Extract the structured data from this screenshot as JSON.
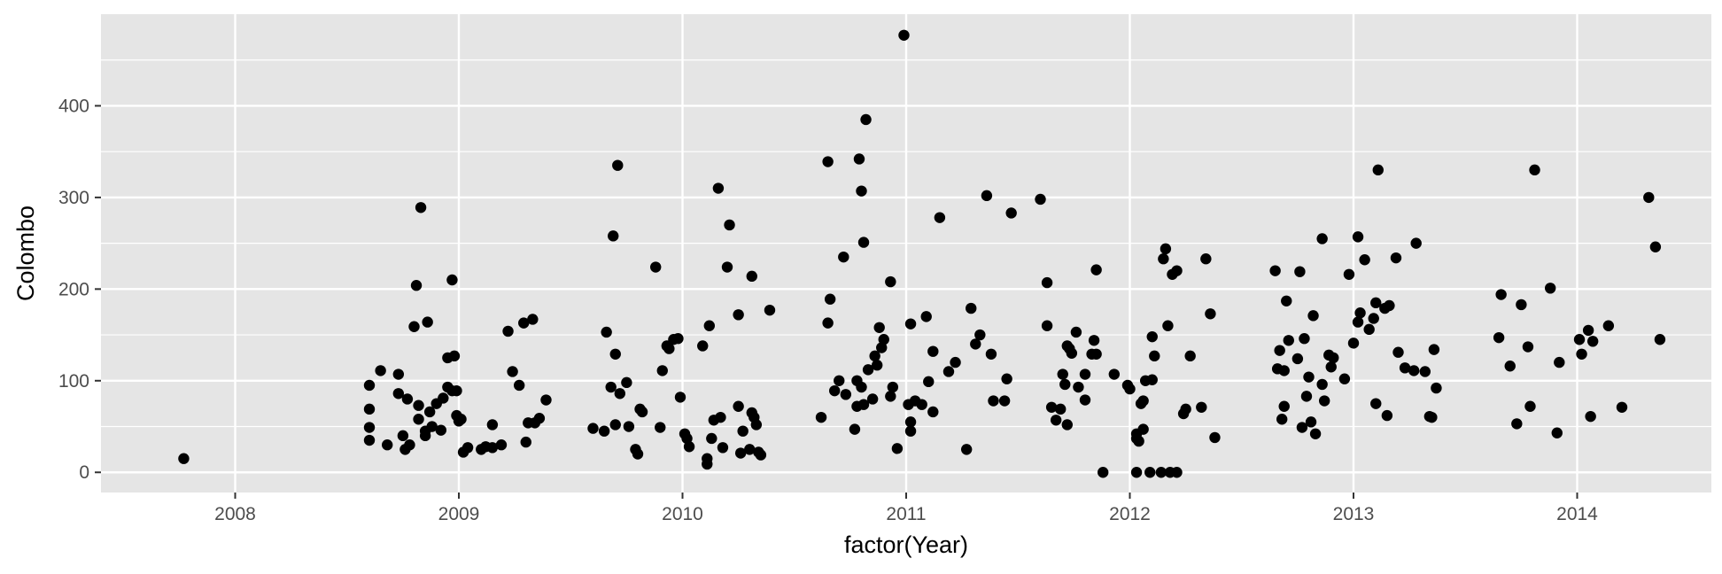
{
  "chart_data": {
    "type": "scatter",
    "xlabel": "factor(Year)",
    "ylabel": "Colombo",
    "xlim": [
      2007.4,
      2014.6
    ],
    "ylim": [
      -22,
      500
    ],
    "x_ticks": [
      2008,
      2009,
      2010,
      2011,
      2012,
      2013,
      2014
    ],
    "x_tick_labels": [
      "2008",
      "2009",
      "2010",
      "2011",
      "2012",
      "2013",
      "2014"
    ],
    "y_ticks": [
      0,
      100,
      200,
      300,
      400
    ],
    "y_tick_labels": [
      "0",
      "100",
      "200",
      "300",
      "400"
    ],
    "grid": true,
    "colors": {
      "panel": "#e5e5e5",
      "grid": "#ffffff",
      "point": "#000000",
      "tick": "#333333"
    },
    "points": [
      [
        2007.77,
        15
      ],
      [
        2008.6,
        95
      ],
      [
        2008.6,
        69
      ],
      [
        2008.6,
        49
      ],
      [
        2008.6,
        35
      ],
      [
        2008.65,
        111
      ],
      [
        2008.68,
        30
      ],
      [
        2008.73,
        86
      ],
      [
        2008.73,
        107
      ],
      [
        2008.75,
        40
      ],
      [
        2008.76,
        25
      ],
      [
        2008.77,
        80
      ],
      [
        2008.78,
        30
      ],
      [
        2008.8,
        159
      ],
      [
        2008.81,
        204
      ],
      [
        2008.82,
        58
      ],
      [
        2008.82,
        73
      ],
      [
        2008.83,
        289
      ],
      [
        2008.85,
        45
      ],
      [
        2008.85,
        40
      ],
      [
        2008.86,
        164
      ],
      [
        2008.87,
        66
      ],
      [
        2008.88,
        50
      ],
      [
        2008.9,
        75
      ],
      [
        2008.92,
        46
      ],
      [
        2008.93,
        81
      ],
      [
        2008.95,
        125
      ],
      [
        2008.95,
        93
      ],
      [
        2008.97,
        210
      ],
      [
        2008.97,
        89
      ],
      [
        2008.98,
        127
      ],
      [
        2008.99,
        89
      ],
      [
        2008.99,
        62
      ],
      [
        2009.0,
        56
      ],
      [
        2009.01,
        58
      ],
      [
        2009.02,
        22
      ],
      [
        2009.04,
        27
      ],
      [
        2009.1,
        25
      ],
      [
        2009.12,
        28
      ],
      [
        2009.15,
        27
      ],
      [
        2009.15,
        52
      ],
      [
        2009.19,
        30
      ],
      [
        2009.22,
        154
      ],
      [
        2009.24,
        110
      ],
      [
        2009.27,
        95
      ],
      [
        2009.29,
        163
      ],
      [
        2009.3,
        33
      ],
      [
        2009.31,
        54
      ],
      [
        2009.33,
        167
      ],
      [
        2009.34,
        54
      ],
      [
        2009.36,
        59
      ],
      [
        2009.39,
        79
      ],
      [
        2009.6,
        48
      ],
      [
        2009.65,
        45
      ],
      [
        2009.66,
        153
      ],
      [
        2009.68,
        93
      ],
      [
        2009.69,
        258
      ],
      [
        2009.7,
        52
      ],
      [
        2009.7,
        129
      ],
      [
        2009.71,
        335
      ],
      [
        2009.72,
        86
      ],
      [
        2009.75,
        98
      ],
      [
        2009.76,
        50
      ],
      [
        2009.79,
        25
      ],
      [
        2009.8,
        20
      ],
      [
        2009.81,
        69
      ],
      [
        2009.82,
        66
      ],
      [
        2009.88,
        224
      ],
      [
        2009.9,
        49
      ],
      [
        2009.91,
        111
      ],
      [
        2009.93,
        138
      ],
      [
        2009.94,
        135
      ],
      [
        2009.96,
        145
      ],
      [
        2009.98,
        146
      ],
      [
        2009.99,
        82
      ],
      [
        2010.01,
        42
      ],
      [
        2010.02,
        37
      ],
      [
        2010.03,
        28
      ],
      [
        2010.09,
        138
      ],
      [
        2010.11,
        9
      ],
      [
        2010.11,
        15
      ],
      [
        2010.12,
        160
      ],
      [
        2010.13,
        37
      ],
      [
        2010.14,
        57
      ],
      [
        2010.16,
        310
      ],
      [
        2010.17,
        60
      ],
      [
        2010.18,
        27
      ],
      [
        2010.2,
        224
      ],
      [
        2010.21,
        270
      ],
      [
        2010.25,
        172
      ],
      [
        2010.25,
        72
      ],
      [
        2010.26,
        21
      ],
      [
        2010.27,
        45
      ],
      [
        2010.3,
        25
      ],
      [
        2010.31,
        65
      ],
      [
        2010.31,
        214
      ],
      [
        2010.32,
        60
      ],
      [
        2010.33,
        52
      ],
      [
        2010.34,
        22
      ],
      [
        2010.35,
        19
      ],
      [
        2010.39,
        177
      ],
      [
        2010.62,
        60
      ],
      [
        2010.65,
        339
      ],
      [
        2010.65,
        163
      ],
      [
        2010.66,
        189
      ],
      [
        2010.68,
        89
      ],
      [
        2010.7,
        100
      ],
      [
        2010.72,
        235
      ],
      [
        2010.73,
        85
      ],
      [
        2010.77,
        47
      ],
      [
        2010.78,
        100
      ],
      [
        2010.78,
        72
      ],
      [
        2010.79,
        342
      ],
      [
        2010.8,
        93
      ],
      [
        2010.8,
        307
      ],
      [
        2010.81,
        251
      ],
      [
        2010.81,
        74
      ],
      [
        2010.82,
        385
      ],
      [
        2010.83,
        112
      ],
      [
        2010.85,
        80
      ],
      [
        2010.86,
        127
      ],
      [
        2010.87,
        117
      ],
      [
        2010.88,
        158
      ],
      [
        2010.89,
        136
      ],
      [
        2010.9,
        145
      ],
      [
        2010.93,
        208
      ],
      [
        2010.93,
        83
      ],
      [
        2010.94,
        93
      ],
      [
        2010.96,
        26
      ],
      [
        2010.99,
        477
      ],
      [
        2011.01,
        74
      ],
      [
        2011.02,
        45
      ],
      [
        2011.02,
        55
      ],
      [
        2011.02,
        162
      ],
      [
        2011.04,
        78
      ],
      [
        2011.07,
        74
      ],
      [
        2011.09,
        170
      ],
      [
        2011.1,
        99
      ],
      [
        2011.12,
        132
      ],
      [
        2011.12,
        66
      ],
      [
        2011.15,
        278
      ],
      [
        2011.19,
        110
      ],
      [
        2011.22,
        120
      ],
      [
        2011.27,
        25
      ],
      [
        2011.29,
        179
      ],
      [
        2011.31,
        140
      ],
      [
        2011.33,
        150
      ],
      [
        2011.36,
        302
      ],
      [
        2011.38,
        129
      ],
      [
        2011.39,
        78
      ],
      [
        2011.44,
        78
      ],
      [
        2011.45,
        102
      ],
      [
        2011.47,
        283
      ],
      [
        2011.6,
        298
      ],
      [
        2011.63,
        207
      ],
      [
        2011.63,
        160
      ],
      [
        2011.65,
        71
      ],
      [
        2011.67,
        57
      ],
      [
        2011.69,
        69
      ],
      [
        2011.7,
        107
      ],
      [
        2011.71,
        96
      ],
      [
        2011.72,
        52
      ],
      [
        2011.72,
        138
      ],
      [
        2011.73,
        135
      ],
      [
        2011.74,
        130
      ],
      [
        2011.76,
        153
      ],
      [
        2011.77,
        93
      ],
      [
        2011.8,
        79
      ],
      [
        2011.8,
        107
      ],
      [
        2011.83,
        129
      ],
      [
        2011.84,
        144
      ],
      [
        2011.85,
        129
      ],
      [
        2011.85,
        221
      ],
      [
        2011.88,
        0
      ],
      [
        2011.93,
        107
      ],
      [
        2011.99,
        95
      ],
      [
        2012.0,
        91
      ],
      [
        2012.03,
        0
      ],
      [
        2012.03,
        37
      ],
      [
        2012.03,
        42
      ],
      [
        2012.04,
        34
      ],
      [
        2012.05,
        75
      ],
      [
        2012.06,
        47
      ],
      [
        2012.06,
        78
      ],
      [
        2012.07,
        100
      ],
      [
        2012.09,
        0
      ],
      [
        2012.1,
        101
      ],
      [
        2012.1,
        148
      ],
      [
        2012.11,
        127
      ],
      [
        2012.14,
        0
      ],
      [
        2012.15,
        233
      ],
      [
        2012.16,
        244
      ],
      [
        2012.17,
        160
      ],
      [
        2012.18,
        0
      ],
      [
        2012.19,
        216
      ],
      [
        2012.21,
        220
      ],
      [
        2012.21,
        0
      ],
      [
        2012.24,
        64
      ],
      [
        2012.25,
        69
      ],
      [
        2012.27,
        127
      ],
      [
        2012.32,
        71
      ],
      [
        2012.34,
        233
      ],
      [
        2012.36,
        173
      ],
      [
        2012.38,
        38
      ],
      [
        2012.65,
        220
      ],
      [
        2012.66,
        113
      ],
      [
        2012.67,
        133
      ],
      [
        2012.68,
        58
      ],
      [
        2012.69,
        111
      ],
      [
        2012.69,
        72
      ],
      [
        2012.7,
        187
      ],
      [
        2012.71,
        144
      ],
      [
        2012.75,
        124
      ],
      [
        2012.76,
        219
      ],
      [
        2012.77,
        49
      ],
      [
        2012.78,
        146
      ],
      [
        2012.79,
        83
      ],
      [
        2012.8,
        104
      ],
      [
        2012.81,
        55
      ],
      [
        2012.82,
        171
      ],
      [
        2012.83,
        42
      ],
      [
        2012.86,
        96
      ],
      [
        2012.86,
        255
      ],
      [
        2012.87,
        78
      ],
      [
        2012.89,
        128
      ],
      [
        2012.9,
        115
      ],
      [
        2012.91,
        125
      ],
      [
        2012.96,
        102
      ],
      [
        2012.98,
        216
      ],
      [
        2013.0,
        141
      ],
      [
        2013.02,
        257
      ],
      [
        2013.02,
        164
      ],
      [
        2013.03,
        174
      ],
      [
        2013.05,
        232
      ],
      [
        2013.07,
        156
      ],
      [
        2013.09,
        168
      ],
      [
        2013.1,
        75
      ],
      [
        2013.1,
        185
      ],
      [
        2013.11,
        330
      ],
      [
        2013.14,
        179
      ],
      [
        2013.15,
        62
      ],
      [
        2013.16,
        182
      ],
      [
        2013.19,
        234
      ],
      [
        2013.2,
        131
      ],
      [
        2013.23,
        114
      ],
      [
        2013.27,
        111
      ],
      [
        2013.28,
        250
      ],
      [
        2013.32,
        110
      ],
      [
        2013.34,
        61
      ],
      [
        2013.35,
        60
      ],
      [
        2013.36,
        134
      ],
      [
        2013.37,
        92
      ],
      [
        2013.65,
        147
      ],
      [
        2013.66,
        194
      ],
      [
        2013.7,
        116
      ],
      [
        2013.73,
        53
      ],
      [
        2013.75,
        183
      ],
      [
        2013.78,
        137
      ],
      [
        2013.79,
        72
      ],
      [
        2013.81,
        330
      ],
      [
        2013.88,
        201
      ],
      [
        2013.91,
        43
      ],
      [
        2013.92,
        120
      ],
      [
        2014.01,
        145
      ],
      [
        2014.02,
        129
      ],
      [
        2014.05,
        155
      ],
      [
        2014.06,
        61
      ],
      [
        2014.07,
        143
      ],
      [
        2014.14,
        160
      ],
      [
        2014.2,
        71
      ],
      [
        2014.32,
        300
      ],
      [
        2014.35,
        246
      ],
      [
        2014.37,
        145
      ]
    ]
  }
}
